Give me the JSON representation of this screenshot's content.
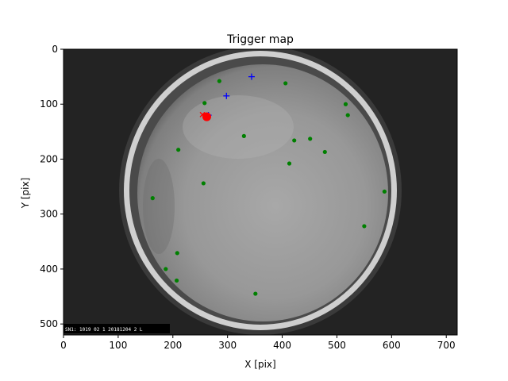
{
  "chart_data": {
    "type": "scatter",
    "title": "Trigger map",
    "xlabel": "X [pix]",
    "ylabel": "Y [pix]",
    "xlim": [
      0,
      720
    ],
    "ylim": [
      520,
      0
    ],
    "x_ticks": [
      0,
      100,
      200,
      300,
      400,
      500,
      600,
      700
    ],
    "y_ticks": [
      0,
      100,
      200,
      300,
      400,
      500
    ],
    "grid": false,
    "background": "camera-fisheye-image",
    "series": [
      {
        "marker": "circle",
        "color": "#008000",
        "points": [
          [
            285,
            58
          ],
          [
            406,
            62
          ],
          [
            258,
            98
          ],
          [
            516,
            100
          ],
          [
            520,
            120
          ],
          [
            330,
            158
          ],
          [
            422,
            166
          ],
          [
            451,
            163
          ],
          [
            210,
            183
          ],
          [
            478,
            187
          ],
          [
            413,
            208
          ],
          [
            256,
            244
          ],
          [
            163,
            271
          ],
          [
            587,
            259
          ],
          [
            550,
            322
          ],
          [
            208,
            371
          ],
          [
            187,
            400
          ],
          [
            207,
            421
          ],
          [
            351,
            445
          ]
        ]
      },
      {
        "marker": "plus",
        "color": "#0000ff",
        "points": [
          [
            344,
            50
          ],
          [
            298,
            85
          ],
          [
            265,
            120
          ]
        ]
      },
      {
        "marker": "large-circle",
        "color": "#ff0000",
        "points": [
          [
            262,
            123
          ]
        ]
      },
      {
        "marker": "x",
        "color": "#ff0000",
        "points": [
          [
            254,
            119
          ]
        ]
      }
    ],
    "image_stamp": "SN1: 1019 02 1 20181204 2 L"
  }
}
